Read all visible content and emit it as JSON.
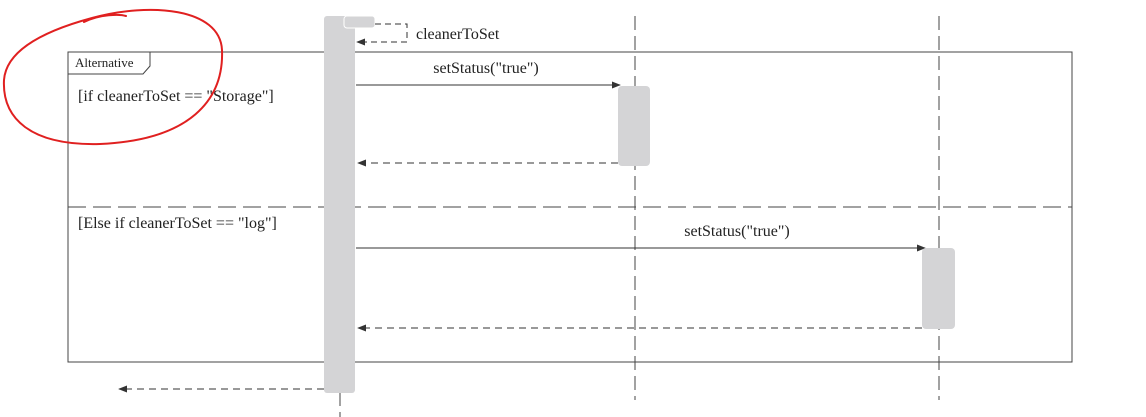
{
  "diagram": {
    "self_message": "cleanerToSet",
    "fragment": {
      "label": "Alternative",
      "guard_1": "[if cleanerToSet == \"Storage\"]",
      "guard_2": "[Else if cleanerToSet == \"log\"]"
    },
    "messages": {
      "call_1": "setStatus(\"true\")",
      "call_2": "setStatus(\"true\")"
    },
    "colors": {
      "activation": "#d4d4d6",
      "line": "#333333",
      "annotation": "#e02020"
    }
  }
}
